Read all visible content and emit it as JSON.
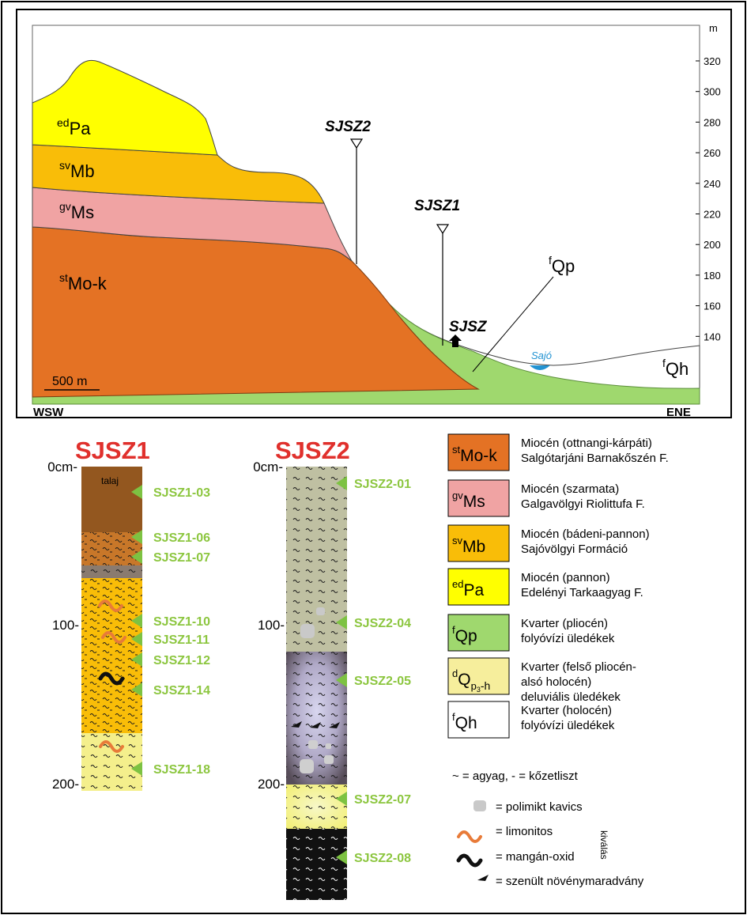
{
  "section": {
    "direction_left": "WSW",
    "direction_right": "ENE",
    "scale_label": "500 m",
    "axis_unit": "m",
    "axis_ticks": [
      "320",
      "300",
      "280",
      "260",
      "240",
      "220",
      "200",
      "180",
      "160",
      "140"
    ],
    "units": {
      "edPa": {
        "sup": "ed",
        "main": "Pa"
      },
      "svMb": {
        "sup": "sv",
        "main": "Mb"
      },
      "gvMs": {
        "sup": "gv",
        "main": "Ms"
      },
      "stMok": {
        "sup": "st",
        "main": "Mo-k"
      },
      "fQp": {
        "sup": "f",
        "main": "Qp"
      },
      "fQh": {
        "sup": "f",
        "main": "Qh"
      }
    },
    "river_label": "Sajó",
    "boreholes": {
      "sjsz2": "SJSZ2",
      "sjsz1": "SJSZ1",
      "sjsz": "SJSZ"
    }
  },
  "logs": {
    "sjsz1": {
      "title": "SJSZ1",
      "depth_labels": [
        "0cm-",
        "100-",
        "200-"
      ],
      "soil_label": "talaj",
      "samples": [
        "SJSZ1-03",
        "SJSZ1-06",
        "SJSZ1-07",
        "SJSZ1-10",
        "SJSZ1-11",
        "SJSZ1-12",
        "SJSZ1-14",
        "SJSZ1-18"
      ]
    },
    "sjsz2": {
      "title": "SJSZ2",
      "depth_labels": [
        "0cm-",
        "100-",
        "200-"
      ],
      "samples": [
        "SJSZ2-01",
        "SJSZ2-04",
        "SJSZ2-05",
        "SJSZ2-07",
        "SJSZ2-08"
      ]
    }
  },
  "legend": {
    "units": [
      {
        "sup": "st",
        "main": "Mo-k",
        "color": "#e47224",
        "line1": "Miocén (ottnangi-kárpáti)",
        "line2": "Salgótarjáni Barnakőszén F."
      },
      {
        "sup": "gv",
        "main": "Ms",
        "color": "#f0a3a3",
        "line1": "Miocén (szarmata)",
        "line2": "Galgavölgyi Riolittufa F."
      },
      {
        "sup": "sv",
        "main": "Mb",
        "color": "#f9bd08",
        "line1": "Miocén (bádeni-pannon)",
        "line2": "Sajóvölgyi Formáció"
      },
      {
        "sup": "ed",
        "main": "Pa",
        "color": "#ffff00",
        "line1": "Miocén (pannon)",
        "line2": "Edelényi Tarkaagyag F."
      },
      {
        "sup": "f",
        "main": "Qp",
        "color": "#9fd86e",
        "line1": "Kvarter (pliocén)",
        "line2": "folyóvízi üledékek"
      },
      {
        "sup": "d",
        "main": "Q",
        "sub": "p",
        "subsub": "3",
        "tail": "-h",
        "color": "#f6ee9c",
        "line1": "Kvarter (felső pliocén-",
        "line2": "alsó holocén)",
        "line3": "deluviális üledékek"
      },
      {
        "sup": "f",
        "main": "Qh",
        "color": "#ffffff",
        "line1": "Kvarter (holocén)",
        "line2": "folyóvízi üledékek"
      }
    ],
    "symbols": {
      "lithology": "~ = agyag, - = kőzetliszt",
      "gravel": "= polimikt kavics",
      "limonite": "= limonitos",
      "manganese": "= mangán-oxid",
      "precipitation": "kiválás",
      "plant": "= szenült növénymaradvány"
    },
    "colors": {
      "soil": "#93571f",
      "brown_layer": "#c87729",
      "gray_layer": "#8a7b6f",
      "orange_layer": "#f9bd08",
      "deluvial": "#f4ef8c",
      "sample_marker": "#7dc242",
      "sample_text": "#8cc63f",
      "title_red": "#e0302c",
      "limonite": "#e87b39",
      "river": "#2393d2"
    }
  }
}
